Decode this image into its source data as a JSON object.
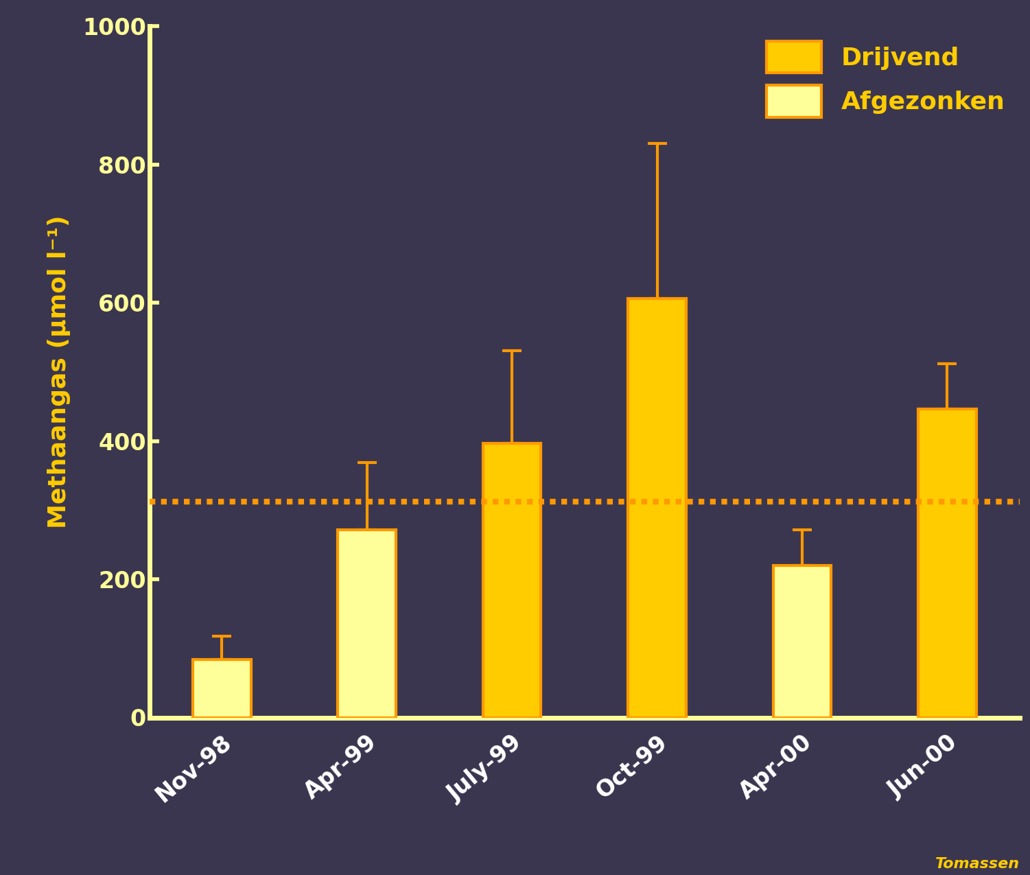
{
  "chart_data": {
    "type": "bar",
    "categories": [
      "Nov-98",
      "Apr-99",
      "July-99",
      "Oct-99",
      "Apr-00",
      "Jun-00"
    ],
    "y_label": "Methaangas (µmol l⁻¹)",
    "series": [
      {
        "name": "Drijvend",
        "color": "#ffcc00",
        "values": [
          null,
          null,
          397,
          606,
          null,
          446
        ],
        "error": [
          null,
          null,
          134,
          224,
          null,
          66
        ]
      },
      {
        "name": "Afgezonken",
        "color": "#ffff99",
        "values": [
          84,
          272,
          null,
          null,
          220,
          null
        ],
        "error": [
          34,
          97,
          null,
          null,
          52,
          null
        ]
      }
    ],
    "reference_line": 312,
    "ylim": [
      0,
      1000
    ],
    "yticks": [
      0,
      200,
      400,
      600,
      800,
      1000
    ],
    "grid": false,
    "legend": "upper right",
    "annotation": "Tomassen"
  }
}
